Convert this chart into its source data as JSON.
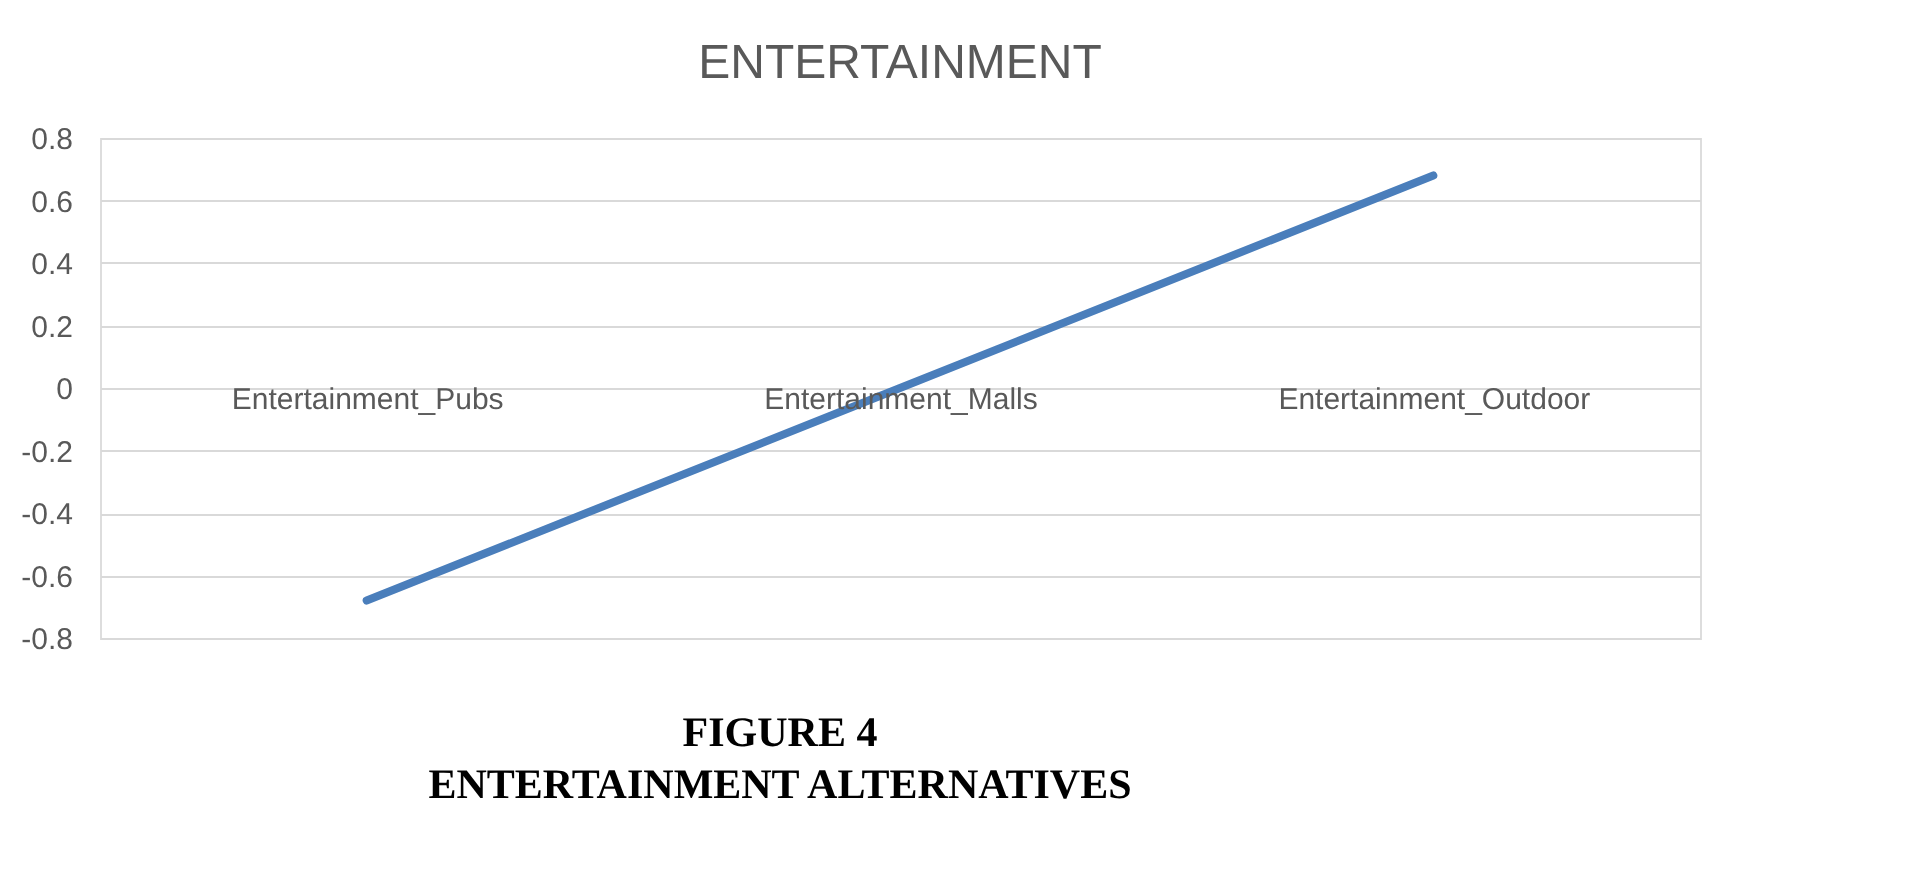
{
  "chart_data": {
    "type": "line",
    "title": "ENTERTAINMENT",
    "categories": [
      "Entertainment_Pubs",
      "Entertainment_Malls",
      "Entertainment_Outdoor"
    ],
    "series": [
      {
        "color": "#4a7ebb",
        "values": [
          -0.68,
          0.0,
          0.68
        ]
      }
    ],
    "ylim": [
      -0.8,
      0.8
    ],
    "yticks": [
      -0.8,
      -0.6,
      -0.4,
      -0.2,
      0,
      0.2,
      0.4,
      0.6,
      0.8
    ],
    "grid": "y",
    "legend": false,
    "marker": "none",
    "line_style": "solid",
    "annotations": [
      "FIGURE 4",
      "ENTERTAINMENT ALTERNATIVES"
    ]
  }
}
